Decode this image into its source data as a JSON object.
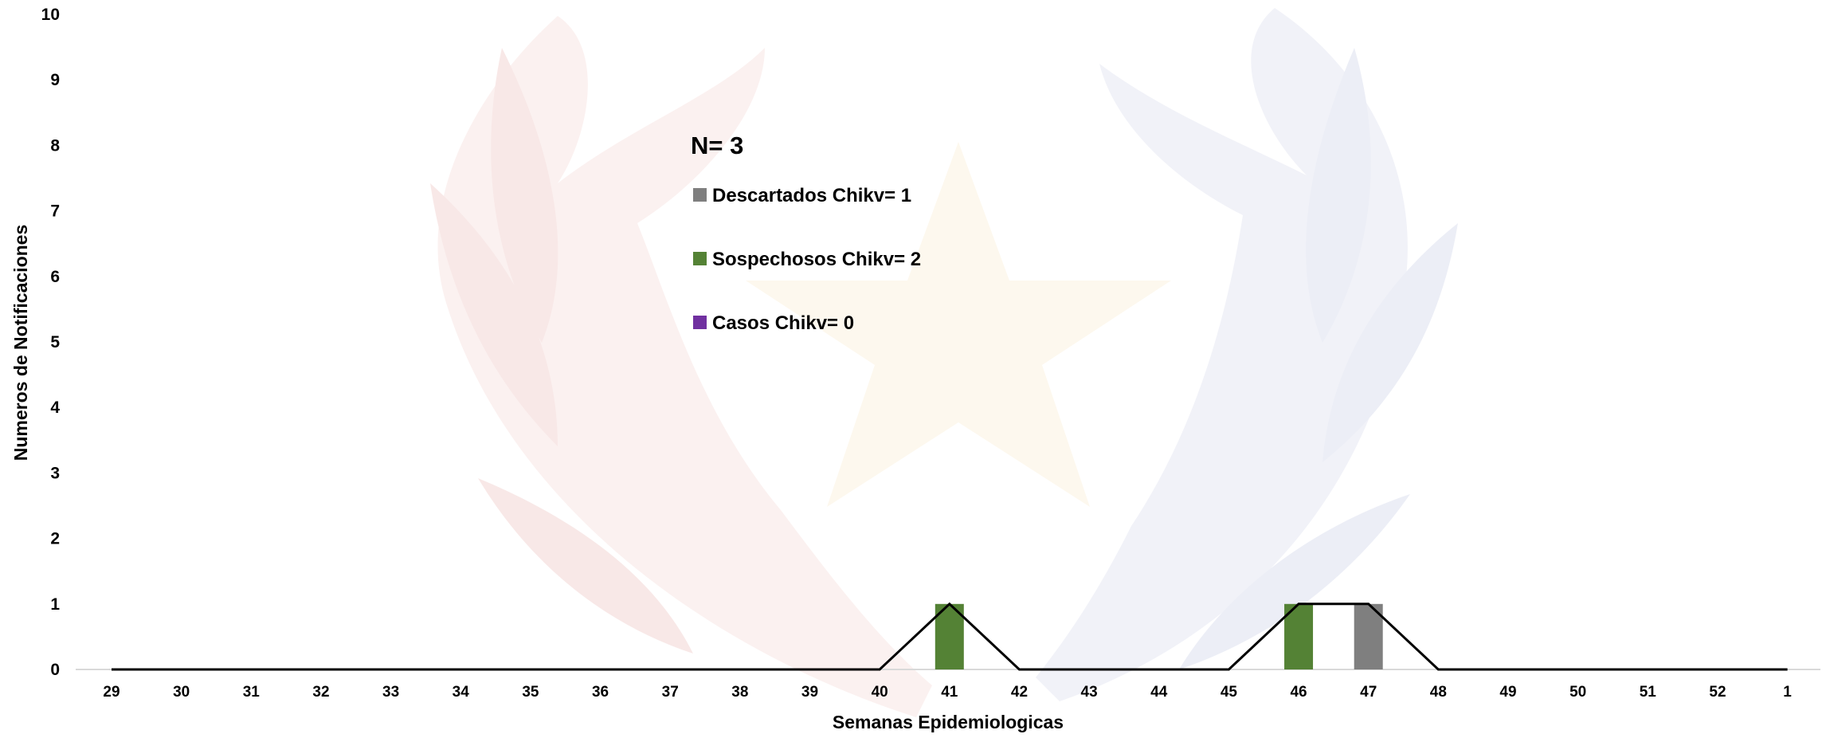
{
  "chart_data": {
    "type": "bar",
    "title": "",
    "xlabel": "Semanas Epidemiologicas",
    "ylabel": "Numeros de Notificaciones",
    "ylim": [
      0,
      10
    ],
    "yticks": [
      0,
      1,
      2,
      3,
      4,
      5,
      6,
      7,
      8,
      9,
      10
    ],
    "grid": false,
    "legend_position": "top-center",
    "categories": [
      "29",
      "30",
      "31",
      "32",
      "33",
      "34",
      "35",
      "36",
      "37",
      "38",
      "39",
      "40",
      "41",
      "42",
      "43",
      "44",
      "45",
      "46",
      "47",
      "48",
      "49",
      "50",
      "51",
      "52",
      "1"
    ],
    "series": [
      {
        "name": "Descartados Chikv= 1",
        "type": "bar",
        "color": "#7f7f7f",
        "values": [
          0,
          0,
          0,
          0,
          0,
          0,
          0,
          0,
          0,
          0,
          0,
          0,
          0,
          0,
          0,
          0,
          0,
          0,
          1,
          0,
          0,
          0,
          0,
          0,
          0
        ]
      },
      {
        "name": "Sospechosos Chikv= 2",
        "type": "bar",
        "color": "#548235",
        "values": [
          0,
          0,
          0,
          0,
          0,
          0,
          0,
          0,
          0,
          0,
          0,
          0,
          1,
          0,
          0,
          0,
          0,
          1,
          0,
          0,
          0,
          0,
          0,
          0,
          0
        ]
      },
      {
        "name": "Casos Chikv= 0",
        "type": "bar",
        "color": "#7030a0",
        "values": [
          0,
          0,
          0,
          0,
          0,
          0,
          0,
          0,
          0,
          0,
          0,
          0,
          0,
          0,
          0,
          0,
          0,
          0,
          0,
          0,
          0,
          0,
          0,
          0,
          0
        ]
      },
      {
        "type": "line",
        "color": "#000000",
        "values": [
          0,
          0,
          0,
          0,
          0,
          0,
          0,
          0,
          0,
          0,
          0,
          0,
          1,
          0,
          0,
          0,
          0,
          1,
          1,
          0,
          0,
          0,
          0,
          0,
          0
        ]
      }
    ],
    "legend_header": "N= 3"
  }
}
